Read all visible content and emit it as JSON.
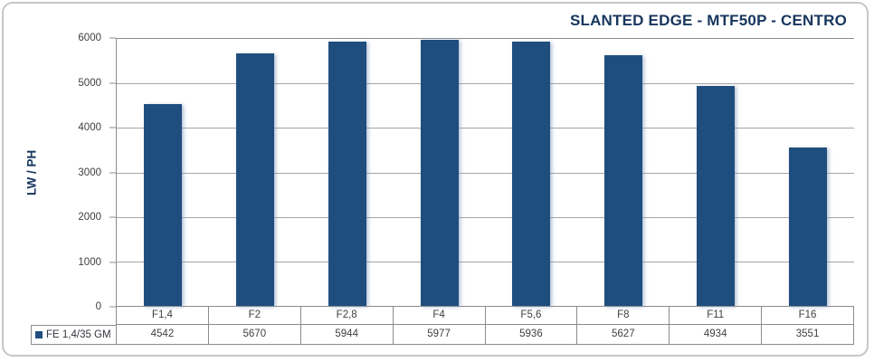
{
  "colors": {
    "bar": "#1F4E7E",
    "title": "#17365D",
    "grid": "#A6A6A6",
    "border": "#8C8C8C",
    "text": "#3F3F3F",
    "container_border": "#C3C7CC"
  },
  "chart_data": {
    "type": "bar",
    "title": "SLANTED EDGE - MTF50P - CENTRO",
    "ylabel": "LW / PH",
    "xlabel": "",
    "categories": [
      "F1,4",
      "F2",
      "F2,8",
      "F4",
      "F5,6",
      "F8",
      "F11",
      "F16"
    ],
    "series": [
      {
        "name": "FE 1,4/35 GM",
        "values": [
          4542,
          5670,
          5944,
          5977,
          5936,
          5627,
          4934,
          3551
        ]
      }
    ],
    "ylim": [
      0,
      6000
    ],
    "yticks": [
      0,
      1000,
      2000,
      3000,
      4000,
      5000,
      6000
    ],
    "grid": true,
    "legend_position": "bottom-left-table",
    "data_table_shown": true
  }
}
